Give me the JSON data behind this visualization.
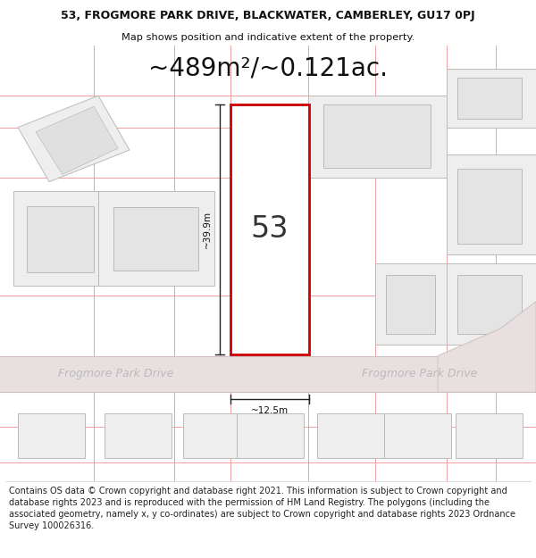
{
  "title": "53, FROGMORE PARK DRIVE, BLACKWATER, CAMBERLEY, GU17 0PJ",
  "subtitle": "Map shows position and indicative extent of the property.",
  "area_text": "~489m²/~0.121ac.",
  "plot_number": "53",
  "width_label": "~12.5m",
  "height_label": "~39.9m",
  "road_label_left": "Frogmore Park Drive",
  "road_label_right": "Frogmore Park Drive",
  "footer_lines": [
    "Contains OS data © Crown copyright and database right 2021. This information is subject to Crown copyright and database rights 2023 and is reproduced with the permission of",
    "HM Land Registry. The polygons (including the associated geometry, namely x, y co-ordinates) are subject to Crown copyright and database rights 2023 Ordnance Survey",
    "100026316."
  ],
  "bg_color": "#ffffff",
  "map_bg": "#ffffff",
  "plot_fill": "#ffffff",
  "plot_edge": "#cc0000",
  "grid_color": "#f0a0a0",
  "building_fill": "#eeeeee",
  "building_edge": "#bbbbbb",
  "line_color": "#222222",
  "text_color": "#111111",
  "road_text_color": "#bbbbbb",
  "title_fontsize": 9.0,
  "subtitle_fontsize": 8.2,
  "area_fontsize": 20,
  "plot_num_fontsize": 24,
  "label_fontsize": 7.5,
  "road_fontsize": 9,
  "footer_fontsize": 7.0
}
